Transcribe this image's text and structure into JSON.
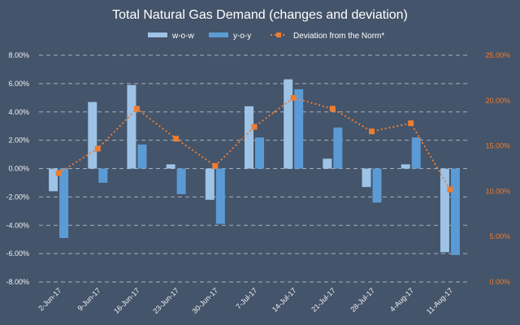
{
  "colors": {
    "background": "#44546A",
    "wow": "#9DC3E6",
    "yoy": "#5B9BD5",
    "norm": "#ED7D31",
    "text": "#FFFFFF",
    "left_ticks": "#F2F2F2",
    "right_ticks": "#ED7D31",
    "grid": "#C9CED6"
  },
  "chart_data": {
    "type": "bar",
    "title": "Total Natural Gas Demand (changes and deviation)",
    "categories": [
      "2-Jun-17",
      "9-Jun-17",
      "16-Jun-17",
      "23-Jun-17",
      "30-Jun-17",
      "7-Jul-17",
      "14-Jul-17",
      "21-Jul-17",
      "28-Jul-17",
      "4-Aug-17",
      "11-Aug-17"
    ],
    "series": [
      {
        "name": "w-o-w",
        "type": "bar",
        "axis": "left",
        "color": "#9DC3E6",
        "values": [
          -1.6,
          4.7,
          5.9,
          0.3,
          -2.2,
          4.4,
          6.3,
          0.7,
          -1.3,
          0.3,
          -5.9
        ]
      },
      {
        "name": "y-o-y",
        "type": "bar",
        "axis": "left",
        "color": "#5B9BD5",
        "values": [
          -4.9,
          -1.0,
          1.7,
          -1.8,
          -3.9,
          2.2,
          5.6,
          2.9,
          -2.4,
          2.2,
          -6.1
        ]
      },
      {
        "name": "Deviation from the Norm*",
        "type": "line",
        "line_style": "dotted",
        "marker": "square",
        "axis": "right",
        "color": "#ED7D31",
        "values": [
          12.0,
          14.7,
          19.1,
          15.8,
          12.8,
          17.1,
          20.3,
          19.1,
          16.6,
          17.5,
          10.2
        ]
      }
    ],
    "y_left": {
      "ylim": [
        -8,
        8
      ],
      "ticks": [
        "8.00%",
        "6.00%",
        "4.00%",
        "2.00%",
        "0.00%",
        "-2.00%",
        "-4.00%",
        "-6.00%",
        "-8.00%"
      ]
    },
    "y_right": {
      "ylim": [
        0,
        25
      ],
      "ticks": [
        "25.00%",
        "20.00%",
        "15.00%",
        "10.00%",
        "5.00%",
        "0.00%"
      ]
    },
    "grid": true,
    "legend_position": "top"
  }
}
